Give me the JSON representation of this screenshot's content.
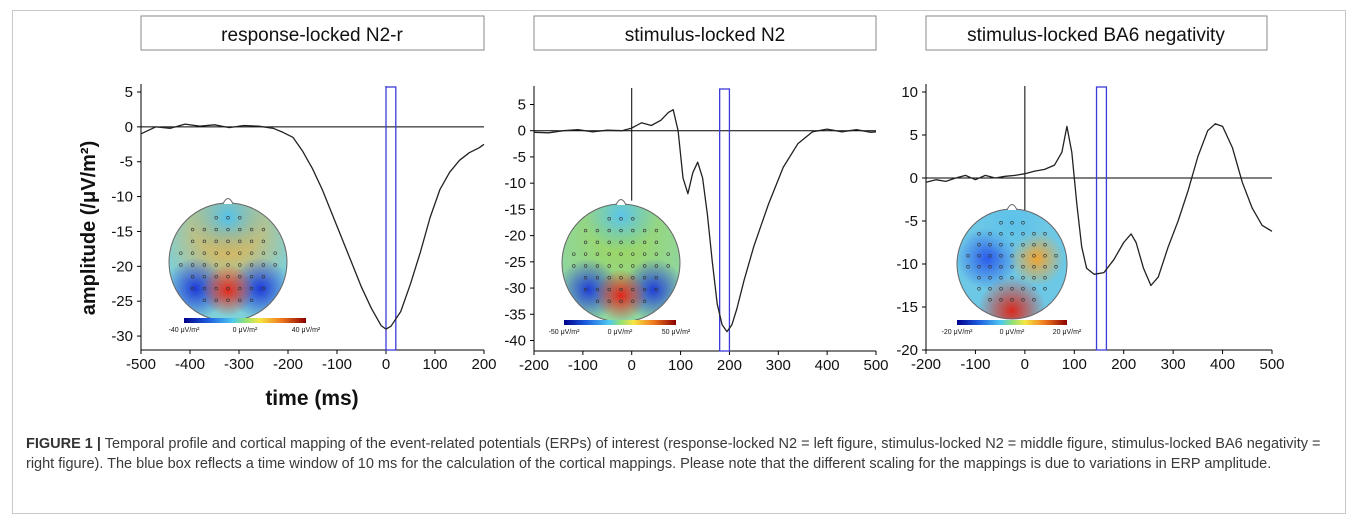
{
  "panels": [
    {
      "title": "response-locked N2-r",
      "xticks": [
        -500,
        -400,
        -300,
        -200,
        -100,
        0,
        100,
        200
      ],
      "yticks": [
        5,
        0,
        -5,
        -10,
        -15,
        -20,
        -25,
        -30
      ],
      "colorbar": [
        "-40 μV/m²",
        "0 μV/m²",
        "40 μV/m²"
      ]
    },
    {
      "title": "stimulus-locked N2",
      "xticks": [
        -200,
        -100,
        0,
        100,
        200,
        300,
        400,
        500
      ],
      "yticks": [
        5,
        0,
        -5,
        -10,
        -15,
        -20,
        -25,
        -30,
        -35,
        -40
      ],
      "colorbar": [
        "-50 μV/m²",
        "0 μV/m²",
        "50 μV/m²"
      ]
    },
    {
      "title": "stimulus-locked BA6 negativity",
      "xticks": [
        -200,
        -100,
        0,
        100,
        200,
        300,
        400,
        500
      ],
      "yticks": [
        10,
        5,
        0,
        -5,
        -10,
        -15,
        -20
      ],
      "colorbar": [
        "-20 μV/m²",
        "0 μV/m²",
        "20 μV/m²"
      ]
    }
  ],
  "ylabel": "amplitude (/μV/m²)",
  "xlabel": "time (ms)",
  "caption": {
    "label": "FIGURE 1 |",
    "text": " Temporal profile and cortical mapping of the event-related potentials (ERPs) of interest (response-locked N2 = left figure, stimulus-locked N2 = middle figure, stimulus-locked BA6 negativity = right figure). The blue box reflects a time window of 10 ms for the calculation of the cortical mappings. Please note that the different scaling for the mappings is due to variations in ERP amplitude."
  },
  "chart_data": [
    {
      "type": "line",
      "title": "response-locked N2-r",
      "xlabel": "time (ms)",
      "ylabel": "amplitude (/μV/m²)",
      "xlim": [
        -500,
        200
      ],
      "ylim": [
        -32,
        5
      ],
      "window": [
        0,
        20
      ],
      "x": [
        -500,
        -470,
        -440,
        -410,
        -380,
        -350,
        -320,
        -290,
        -260,
        -230,
        -210,
        -190,
        -170,
        -150,
        -130,
        -110,
        -90,
        -70,
        -50,
        -30,
        -10,
        0,
        10,
        30,
        50,
        70,
        90,
        110,
        130,
        150,
        170,
        190,
        200
      ],
      "y": [
        -1,
        0,
        -0.2,
        0.4,
        0.1,
        0.3,
        -0.1,
        0.2,
        0.1,
        -0.2,
        -0.8,
        -1.5,
        -3.5,
        -6,
        -9,
        -12.5,
        -16,
        -19.5,
        -23,
        -26,
        -28.5,
        -29,
        -28.6,
        -26.5,
        -22.5,
        -18,
        -13,
        -9,
        -6.5,
        -4.8,
        -3.7,
        -3.0,
        -2.5
      ]
    },
    {
      "type": "line",
      "title": "stimulus-locked N2",
      "xlabel": "time (ms)",
      "xlim": [
        -200,
        500
      ],
      "ylim": [
        -42,
        7
      ],
      "window": [
        180,
        200
      ],
      "x": [
        -200,
        -170,
        -140,
        -110,
        -80,
        -50,
        -20,
        0,
        20,
        40,
        60,
        75,
        85,
        95,
        105,
        115,
        125,
        135,
        145,
        155,
        165,
        175,
        185,
        195,
        205,
        215,
        230,
        250,
        280,
        310,
        340,
        370,
        400,
        430,
        460,
        490,
        500
      ],
      "y": [
        -0.3,
        -0.4,
        0,
        0.2,
        -0.2,
        0.1,
        0,
        0.5,
        1.5,
        1,
        2,
        3.5,
        4,
        0,
        -9,
        -12,
        -8,
        -6,
        -9,
        -16,
        -25,
        -33,
        -37,
        -38.3,
        -37,
        -34,
        -28.5,
        -22,
        -14,
        -7,
        -2.5,
        -0.2,
        0.3,
        -0.2,
        0.2,
        -0.3,
        -0.2
      ]
    },
    {
      "type": "line",
      "title": "stimulus-locked BA6 negativity",
      "xlabel": "time (ms)",
      "xlim": [
        -200,
        500
      ],
      "ylim": [
        -20,
        10
      ],
      "window": [
        145,
        165
      ],
      "x": [
        -200,
        -180,
        -160,
        -140,
        -120,
        -100,
        -80,
        -60,
        -40,
        -20,
        0,
        20,
        40,
        60,
        75,
        85,
        95,
        105,
        115,
        125,
        140,
        160,
        180,
        200,
        215,
        225,
        240,
        255,
        270,
        290,
        310,
        330,
        350,
        370,
        385,
        400,
        420,
        440,
        460,
        480,
        500
      ],
      "y": [
        -0.5,
        -0.2,
        -0.4,
        0,
        0.3,
        -0.2,
        0.3,
        0,
        0.2,
        0.3,
        0.5,
        0.8,
        1,
        1.5,
        3,
        6,
        3,
        -3,
        -8,
        -10.5,
        -11.2,
        -11,
        -9.5,
        -7.5,
        -6.5,
        -7.5,
        -10.5,
        -12.5,
        -11.5,
        -8,
        -5,
        -1.5,
        2.5,
        5.5,
        6.3,
        6,
        3.5,
        -0.5,
        -3.5,
        -5.5,
        -6.2
      ]
    }
  ],
  "colors": {
    "trace": "#222222",
    "window_box": "#3b3bd9",
    "caption_label": "#333333"
  }
}
